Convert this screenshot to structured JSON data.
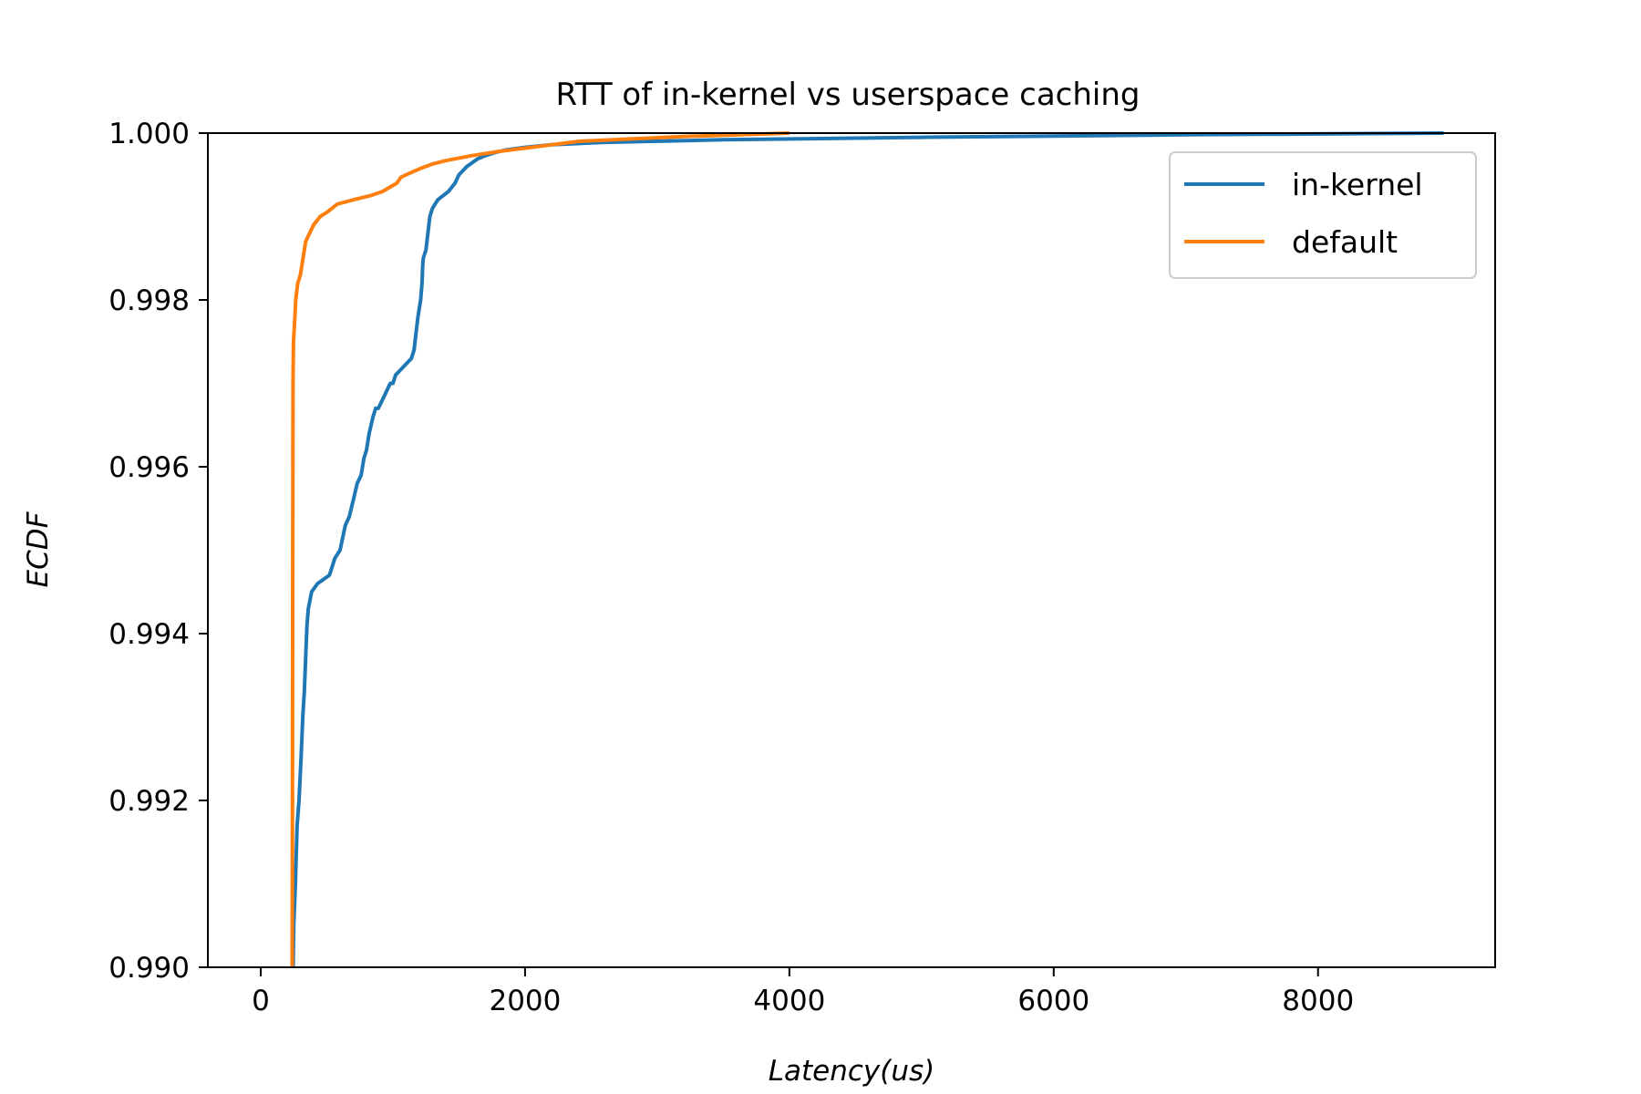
{
  "chart_data": {
    "type": "line",
    "title": "RTT of in-kernel vs userspace caching",
    "xlabel": "Latency(us)",
    "ylabel": "ECDF",
    "xlim": [
      -400,
      9340
    ],
    "ylim": [
      0.99,
      1.0
    ],
    "xticks": [
      0,
      2000,
      4000,
      6000,
      8000
    ],
    "xtick_labels": [
      "0",
      "2000",
      "4000",
      "6000",
      "8000"
    ],
    "yticks": [
      0.99,
      0.992,
      0.994,
      0.996,
      0.998,
      1.0
    ],
    "ytick_labels": [
      "0.990",
      "0.992",
      "0.994",
      "0.996",
      "0.998",
      "1.000"
    ],
    "grid": false,
    "legend_position": "upper-right",
    "series": [
      {
        "name": "in-kernel",
        "color": "#1f77b4",
        "x": [
          245,
          250,
          262,
          275,
          290,
          305,
          318,
          330,
          342,
          350,
          360,
          385,
          430,
          520,
          560,
          600,
          640,
          670,
          700,
          730,
          760,
          780,
          800,
          820,
          850,
          870,
          890,
          920,
          980,
          1000,
          1020,
          1080,
          1140,
          1160,
          1175,
          1190,
          1210,
          1220,
          1225,
          1230,
          1250,
          1280,
          1300,
          1340,
          1420,
          1470,
          1500,
          1560,
          1640,
          1700,
          1780,
          1860,
          2000,
          2200,
          2600,
          3500,
          5000,
          7000,
          8950
        ],
        "y": [
          0.99,
          0.9905,
          0.991,
          0.9917,
          0.992,
          0.9925,
          0.993,
          0.9933,
          0.9938,
          0.9941,
          0.9943,
          0.9945,
          0.9946,
          0.9947,
          0.9949,
          0.995,
          0.9953,
          0.9954,
          0.9956,
          0.9958,
          0.9959,
          0.9961,
          0.9962,
          0.9964,
          0.9966,
          0.9967,
          0.9967,
          0.9968,
          0.997,
          0.997,
          0.9971,
          0.9972,
          0.9973,
          0.9974,
          0.9976,
          0.9978,
          0.998,
          0.9982,
          0.9984,
          0.9985,
          0.9986,
          0.999,
          0.9991,
          0.9992,
          0.9993,
          0.9994,
          0.9995,
          0.9996,
          0.99969,
          0.99973,
          0.99977,
          0.9998,
          0.99983,
          0.99986,
          0.99989,
          0.99992,
          0.99995,
          0.99998,
          1.0
        ]
      },
      {
        "name": "default",
        "color": "#ff7f0e",
        "x": [
          238,
          240,
          242,
          244,
          248,
          255,
          265,
          280,
          300,
          320,
          340,
          400,
          450,
          500,
          580,
          700,
          830,
          920,
          1030,
          1060,
          1100,
          1200,
          1300,
          1400,
          1600,
          1800,
          2000,
          2200,
          2400,
          2800,
          3200,
          4000
        ],
        "y": [
          0.99,
          0.992,
          0.995,
          0.997,
          0.9975,
          0.9977,
          0.998,
          0.9982,
          0.9983,
          0.9985,
          0.9987,
          0.9989,
          0.999,
          0.99905,
          0.99915,
          0.9992,
          0.99925,
          0.9993,
          0.9994,
          0.99947,
          0.9995,
          0.99957,
          0.99963,
          0.99967,
          0.99973,
          0.99978,
          0.99982,
          0.99986,
          0.9999,
          0.99993,
          0.99996,
          1.0
        ]
      }
    ]
  }
}
